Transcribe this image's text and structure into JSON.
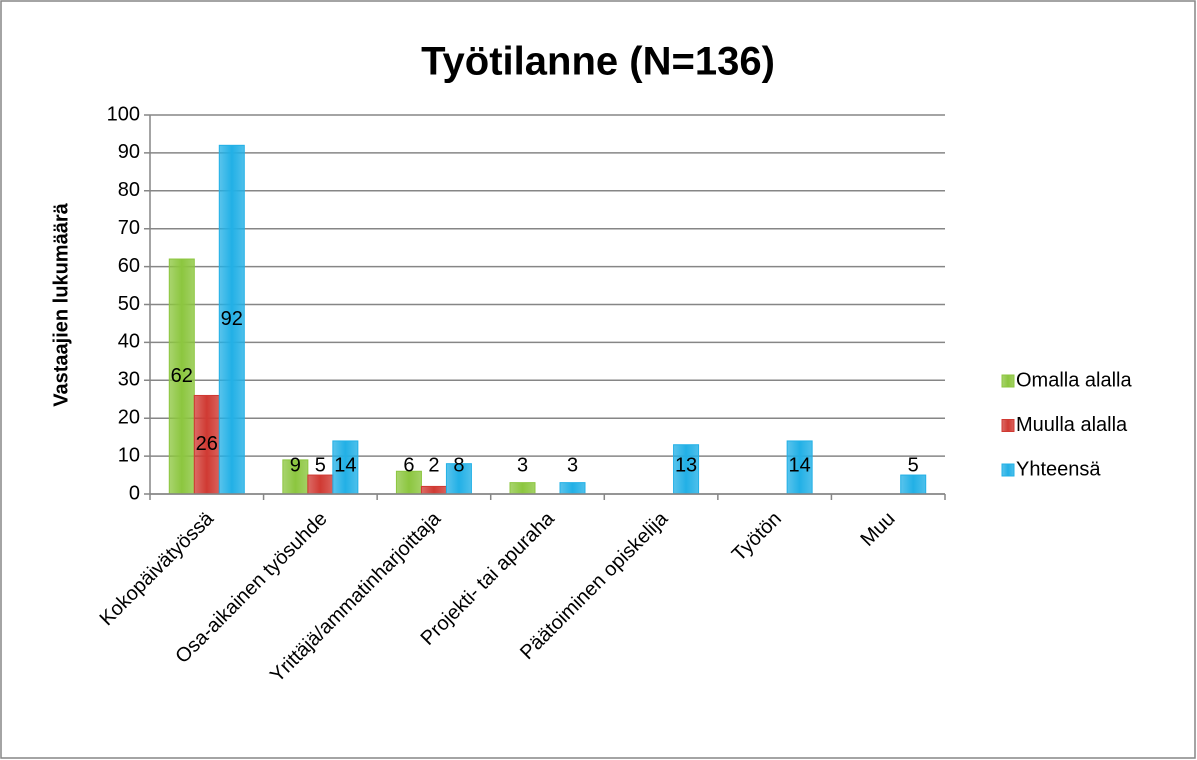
{
  "chart_data": {
    "type": "bar",
    "title": "Työtilanne (N=136)",
    "y_label": "Vastaajien lukumäärä",
    "categories": [
      "Kokopäivätyössä",
      "Osa-aikainen työsuhde",
      "Yrittäjä/ammatinharjoittaja",
      "Projekti- tai apuraha",
      "Päätoiminen opiskelija",
      "Työtön",
      "Muu"
    ],
    "series": [
      {
        "name": "Omalla alalla",
        "color": "#8cc63f",
        "values": [
          62,
          9,
          6,
          3,
          null,
          null,
          null
        ]
      },
      {
        "name": "Muulla alalla",
        "color": "#d03a33",
        "values": [
          26,
          5,
          2,
          null,
          null,
          null,
          null
        ]
      },
      {
        "name": "Yhteensä",
        "color": "#22b0e6",
        "values": [
          92,
          14,
          8,
          3,
          13,
          14,
          5
        ]
      }
    ],
    "ylim": [
      0,
      100
    ],
    "yticks": [
      0,
      10,
      20,
      30,
      40,
      50,
      60,
      70,
      80,
      90,
      100
    ],
    "grid": true,
    "legend": "right"
  }
}
